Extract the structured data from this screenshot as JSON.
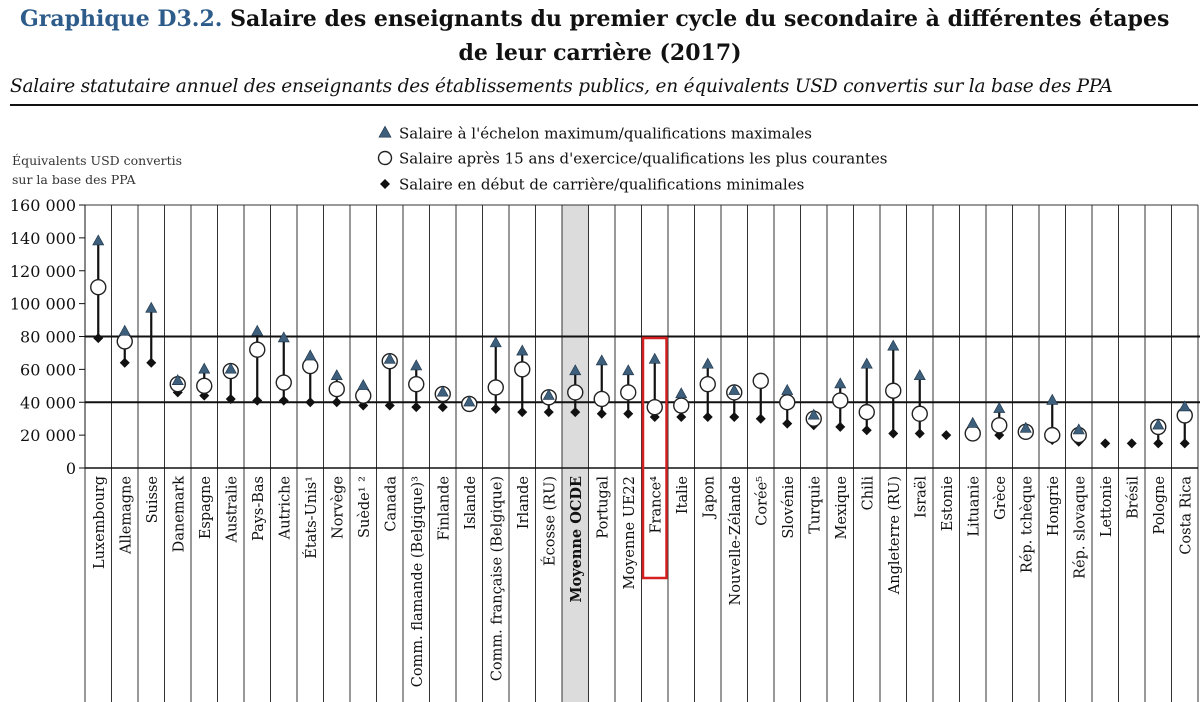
{
  "header": {
    "figure_label": "Graphique D3.2.",
    "title_part1": "Salaire des enseignants du premier cycle du secondaire à différentes étapes",
    "title_part2": "de leur carrière (2017)",
    "subtitle": "Salaire statutaire annuel des enseignants des établissements publics, en équivalents USD convertis sur la base des PPA"
  },
  "chart_data": {
    "type": "scatter",
    "ylabel_lines": [
      "Équivalents USD convertis",
      "sur la base des PPA"
    ],
    "ylim": [
      0,
      160000
    ],
    "yticks": [
      0,
      20000,
      40000,
      60000,
      80000,
      100000,
      120000,
      140000,
      160000
    ],
    "ytick_labels": [
      "0",
      "20 000",
      "40 000",
      "60 000",
      "80 000",
      "100 000",
      "120 000",
      "140 000",
      "160 000"
    ],
    "grid": "vertical lines between countries; horizontal reference lines at 40 000 and 80 000",
    "legend_position": "top-center",
    "legend": [
      {
        "marker": "triangle",
        "label": "Salaire à l'échelon maximum/qualifications maximales"
      },
      {
        "marker": "circle",
        "label": "Salaire après 15 ans d'exercice/qualifications les plus courantes"
      },
      {
        "marker": "diamond",
        "label": "Salaire en début de carrière/qualifications minimales"
      }
    ],
    "highlighted_categories": [
      "Moyenne OCDE",
      "France"
    ],
    "series_keys": [
      "max",
      "mid",
      "min"
    ],
    "categories": [
      {
        "label": "Luxembourg",
        "max": 138000,
        "mid": 110000,
        "min": 79000
      },
      {
        "label": "Allemagne",
        "max": 83000,
        "mid": 77000,
        "min": 64000
      },
      {
        "label": "Suisse",
        "max": 97000,
        "mid": null,
        "min": 64000
      },
      {
        "label": "Danemark",
        "max": 53000,
        "mid": 51000,
        "min": 46000
      },
      {
        "label": "Espagne",
        "max": 60000,
        "mid": 50000,
        "min": 44000
      },
      {
        "label": "Australie",
        "max": 60000,
        "mid": 59000,
        "min": 42000
      },
      {
        "label": "Pays-Bas",
        "max": 83000,
        "mid": 72000,
        "min": 41000
      },
      {
        "label": "Autriche",
        "max": 79000,
        "mid": 52000,
        "min": 41000
      },
      {
        "label": "États-Unis¹",
        "max": 68000,
        "mid": 62000,
        "min": 40000
      },
      {
        "label": "Norvège",
        "max": 56000,
        "mid": 48000,
        "min": 40000
      },
      {
        "label": "Suède¹ ²",
        "max": 50000,
        "mid": 44000,
        "min": 38000
      },
      {
        "label": "Canada",
        "max": 66000,
        "mid": 65000,
        "min": 38000
      },
      {
        "label": "Comm. flamande (Belgique)³",
        "max": 62000,
        "mid": 51000,
        "min": 37000
      },
      {
        "label": "Finlande",
        "max": 46000,
        "mid": 45000,
        "min": 37000
      },
      {
        "label": "Islande",
        "max": 40000,
        "mid": 39000,
        "min": 37000
      },
      {
        "label": "Comm. française (Belgique)",
        "max": 76000,
        "mid": 49000,
        "min": 36000
      },
      {
        "label": "Irlande",
        "max": 71000,
        "mid": 60000,
        "min": 34000
      },
      {
        "label": "Écosse (RU)",
        "max": 44000,
        "mid": 43000,
        "min": 34000
      },
      {
        "label": "Moyenne OCDE",
        "max": 59000,
        "mid": 46000,
        "min": 34000
      },
      {
        "label": "Portugal",
        "max": 65000,
        "mid": 42000,
        "min": 33000
      },
      {
        "label": "Moyenne UE22",
        "max": 59000,
        "mid": 46000,
        "min": 33000
      },
      {
        "label": "France⁴",
        "max": 66000,
        "mid": 37000,
        "min": 31000
      },
      {
        "label": "Italie",
        "max": 45000,
        "mid": 38000,
        "min": 31000
      },
      {
        "label": "Japon",
        "max": 63000,
        "mid": 51000,
        "min": 31000
      },
      {
        "label": "Nouvelle-Zélande",
        "max": 47000,
        "mid": 46000,
        "min": 31000
      },
      {
        "label": "Corée⁵",
        "max": null,
        "mid": 53000,
        "min": 30000
      },
      {
        "label": "Slovénie",
        "max": 47000,
        "mid": 40000,
        "min": 27000
      },
      {
        "label": "Turquie",
        "max": 32000,
        "mid": 30000,
        "min": 26000
      },
      {
        "label": "Mexique",
        "max": 51000,
        "mid": 41000,
        "min": 25000
      },
      {
        "label": "Chili",
        "max": 63000,
        "mid": 34000,
        "min": 23000
      },
      {
        "label": "Angleterre (RU)",
        "max": 74000,
        "mid": 47000,
        "min": 21000
      },
      {
        "label": "Israël",
        "max": 56000,
        "mid": 33000,
        "min": 21000
      },
      {
        "label": "Estonie",
        "max": null,
        "mid": null,
        "min": 20000
      },
      {
        "label": "Lituanie",
        "max": 27000,
        "mid": 21000,
        "min": 20000
      },
      {
        "label": "Grèce",
        "max": 36000,
        "mid": 26000,
        "min": 20000
      },
      {
        "label": "Rép. tchèque",
        "max": 24000,
        "mid": 22000,
        "min": 20000
      },
      {
        "label": "Hongrie",
        "max": 41000,
        "mid": 20000,
        "min": 17000
      },
      {
        "label": "Rép. slovaque",
        "max": 23000,
        "mid": 20000,
        "min": 16000
      },
      {
        "label": "Lettonie",
        "max": null,
        "mid": null,
        "min": 15000
      },
      {
        "label": "Brésil",
        "max": null,
        "mid": null,
        "min": 15000
      },
      {
        "label": "Pologne",
        "max": 26000,
        "mid": 25000,
        "min": 15000
      },
      {
        "label": "Costa Rica",
        "max": 37000,
        "mid": 32000,
        "min": 15000
      }
    ]
  },
  "colors": {
    "triangle": "#3d5f7c",
    "highlight_box": "#d42020",
    "oecd_band": "#dcdcdc"
  }
}
